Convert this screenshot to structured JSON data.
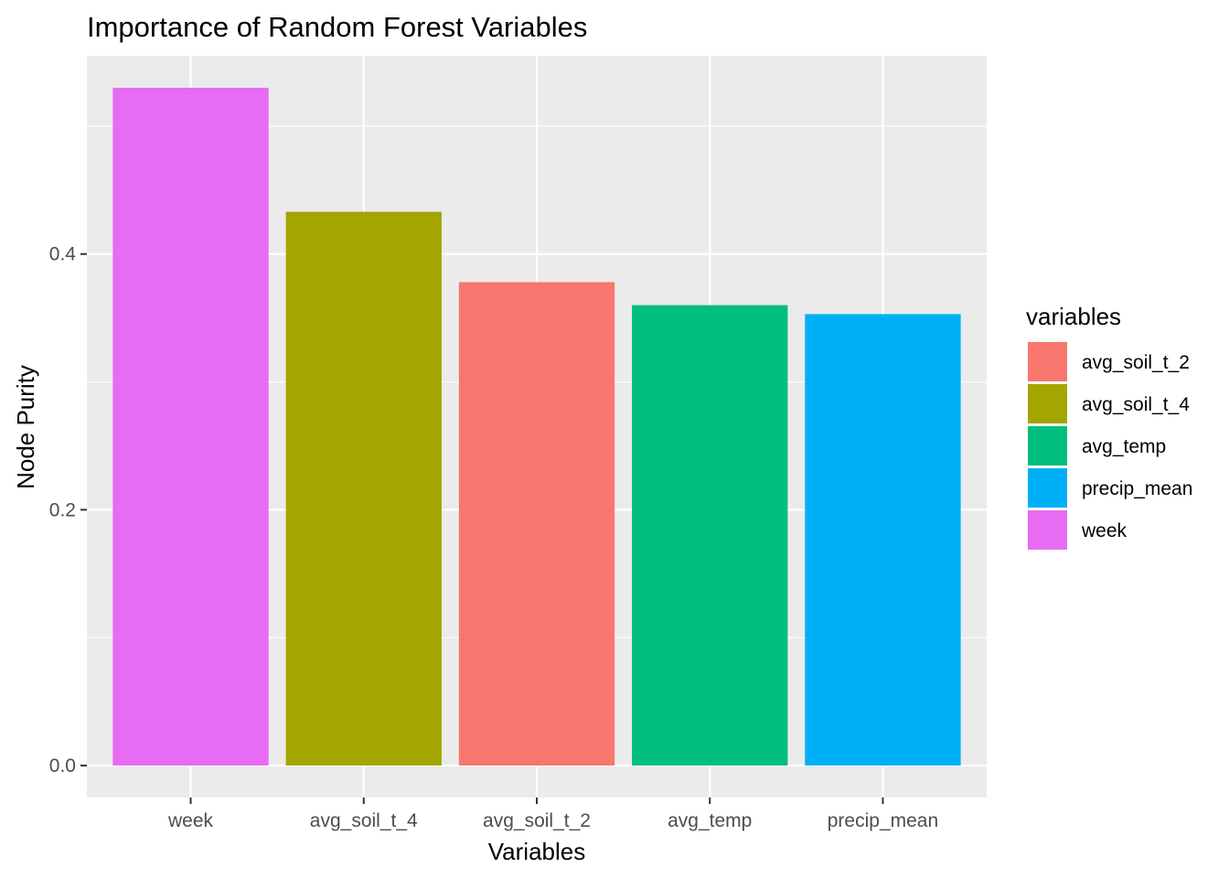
{
  "chart_data": {
    "type": "bar",
    "title": "Importance of Random Forest Variables",
    "xlabel": "Variables",
    "ylabel": "Node Purity",
    "categories": [
      "week",
      "avg_soil_t_4",
      "avg_soil_t_2",
      "avg_temp",
      "precip_mean"
    ],
    "values": [
      0.53,
      0.433,
      0.378,
      0.36,
      0.353
    ],
    "bar_colors": [
      "#E76BF3",
      "#A3A500",
      "#F8766D",
      "#00BF7D",
      "#00B0F6"
    ],
    "ylim": [
      -0.025,
      0.555
    ],
    "yticks": [
      0.0,
      0.2,
      0.4
    ],
    "ytick_labels": [
      "0.0",
      "0.2",
      "0.4"
    ],
    "grid": true,
    "panel_background": "#EBEBEB",
    "legend": {
      "title": "variables",
      "placement": "right",
      "items": [
        {
          "label": "avg_soil_t_2",
          "color": "#F8766D"
        },
        {
          "label": "avg_soil_t_4",
          "color": "#A3A500"
        },
        {
          "label": "avg_temp",
          "color": "#00BF7D"
        },
        {
          "label": "precip_mean",
          "color": "#00B0F6"
        },
        {
          "label": "week",
          "color": "#E76BF3"
        }
      ]
    }
  }
}
